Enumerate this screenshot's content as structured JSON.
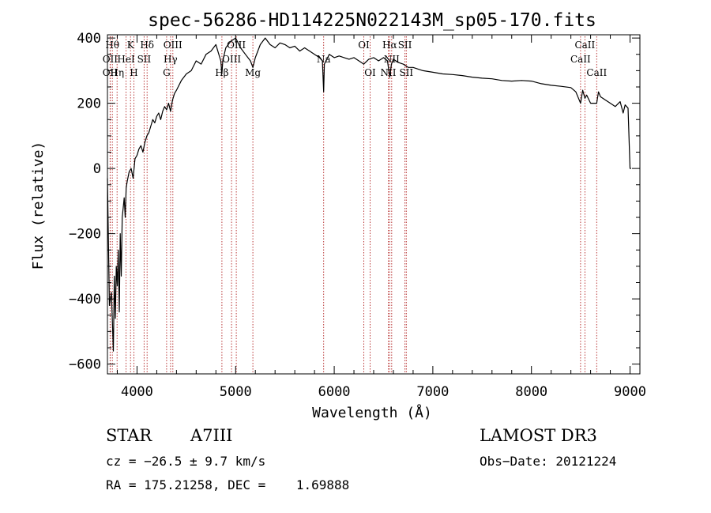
{
  "chart_data": {
    "type": "line",
    "title": "spec-56286-HD114225N022143M_sp05-170.fits",
    "xlabel": "Wavelength (Å)",
    "ylabel": "Flux (relative)",
    "xlim": [
      3700,
      9100
    ],
    "ylim": [
      -630,
      410
    ],
    "x_ticks": [
      {
        "value": 4000,
        "label": "4000"
      },
      {
        "value": 5000,
        "label": "5000"
      },
      {
        "value": 6000,
        "label": "6000"
      },
      {
        "value": 7000,
        "label": "7000"
      },
      {
        "value": 8000,
        "label": "8000"
      },
      {
        "value": 9000,
        "label": "9000"
      }
    ],
    "y_ticks": [
      {
        "value": -600,
        "label": "−600"
      },
      {
        "value": -400,
        "label": "−400"
      },
      {
        "value": -200,
        "label": "−200"
      },
      {
        "value": 0,
        "label": "0"
      },
      {
        "value": 200,
        "label": "200"
      },
      {
        "value": 400,
        "label": "400"
      }
    ],
    "series": [
      {
        "name": "spectrum",
        "x": [
          3700,
          3720,
          3740,
          3760,
          3770,
          3780,
          3790,
          3800,
          3810,
          3820,
          3830,
          3840,
          3850,
          3860,
          3870,
          3880,
          3890,
          3900,
          3920,
          3940,
          3960,
          3980,
          4000,
          4020,
          4040,
          4060,
          4080,
          4100,
          4120,
          4140,
          4160,
          4180,
          4200,
          4220,
          4240,
          4260,
          4280,
          4300,
          4320,
          4340,
          4360,
          4380,
          4400,
          4450,
          4500,
          4550,
          4600,
          4650,
          4700,
          4750,
          4800,
          4830,
          4850,
          4861,
          4870,
          4900,
          4950,
          5000,
          5050,
          5100,
          5150,
          5175,
          5200,
          5250,
          5300,
          5350,
          5400,
          5450,
          5500,
          5550,
          5600,
          5650,
          5700,
          5750,
          5800,
          5850,
          5880,
          5893,
          5900,
          5950,
          6000,
          6050,
          6100,
          6150,
          6200,
          6250,
          6300,
          6350,
          6400,
          6450,
          6500,
          6540,
          6563,
          6580,
          6600,
          6650,
          6700,
          6750,
          6800,
          6900,
          7000,
          7100,
          7200,
          7300,
          7400,
          7500,
          7600,
          7700,
          7800,
          7900,
          8000,
          8100,
          8200,
          8300,
          8400,
          8450,
          8498,
          8520,
          8542,
          8560,
          8600,
          8662,
          8680,
          8700,
          8750,
          8800,
          8850,
          8900,
          8930,
          8950,
          8980,
          9000,
          9010
        ],
        "y": [
          -30,
          -420,
          -380,
          -560,
          -330,
          -460,
          -300,
          -360,
          -250,
          -440,
          -200,
          -330,
          -150,
          -120,
          -90,
          -150,
          -60,
          -40,
          -10,
          0,
          -30,
          30,
          40,
          60,
          70,
          50,
          80,
          100,
          110,
          130,
          150,
          140,
          160,
          170,
          150,
          175,
          190,
          180,
          200,
          175,
          210,
          230,
          240,
          270,
          290,
          300,
          330,
          320,
          350,
          360,
          380,
          350,
          330,
          290,
          330,
          370,
          390,
          400,
          370,
          350,
          330,
          310,
          340,
          380,
          400,
          380,
          370,
          385,
          380,
          370,
          375,
          360,
          370,
          360,
          350,
          340,
          330,
          235,
          320,
          350,
          340,
          345,
          340,
          335,
          340,
          330,
          320,
          335,
          340,
          330,
          340,
          330,
          280,
          320,
          335,
          325,
          320,
          310,
          310,
          300,
          295,
          290,
          288,
          285,
          280,
          277,
          275,
          270,
          268,
          270,
          268,
          260,
          255,
          252,
          248,
          235,
          200,
          240,
          215,
          225,
          200,
          200,
          235,
          220,
          210,
          200,
          190,
          205,
          170,
          195,
          185,
          0,
          0
        ]
      }
    ],
    "lines": [
      {
        "x": 3750,
        "label": "Hθ",
        "row": 0
      },
      {
        "x": 3727,
        "label": "OII",
        "row": 1
      },
      {
        "x": 3727,
        "label": "OII",
        "row": 2
      },
      {
        "x": 3798,
        "label": "Hη",
        "row": 2
      },
      {
        "x": 3889,
        "label": "HeI",
        "row": 1
      },
      {
        "x": 3934,
        "label": "K",
        "row": 0
      },
      {
        "x": 3968,
        "label": "H",
        "row": 2
      },
      {
        "x": 4072,
        "label": "SII",
        "row": 1
      },
      {
        "x": 4102,
        "label": "Hδ",
        "row": 0
      },
      {
        "x": 4300,
        "label": "G",
        "row": 2
      },
      {
        "x": 4340,
        "label": "Hγ",
        "row": 1
      },
      {
        "x": 4363,
        "label": "OIII",
        "row": 0
      },
      {
        "x": 4861,
        "label": "Hβ",
        "row": 2
      },
      {
        "x": 4959,
        "label": "OIII",
        "row": 1
      },
      {
        "x": 5007,
        "label": "OIII",
        "row": 0
      },
      {
        "x": 5175,
        "label": "Mg",
        "row": 2
      },
      {
        "x": 5893,
        "label": "Na",
        "row": 1
      },
      {
        "x": 6300,
        "label": "OI",
        "row": 0
      },
      {
        "x": 6364,
        "label": "OI",
        "row": 2
      },
      {
        "x": 6548,
        "label": "NII",
        "row": 2
      },
      {
        "x": 6563,
        "label": "Hα",
        "row": 0
      },
      {
        "x": 6583,
        "label": "NII",
        "row": 1
      },
      {
        "x": 6717,
        "label": "SII",
        "row": 0
      },
      {
        "x": 6731,
        "label": "SII",
        "row": 2
      },
      {
        "x": 8498,
        "label": "CaII",
        "row": 1
      },
      {
        "x": 8542,
        "label": "CaII",
        "row": 0
      },
      {
        "x": 8662,
        "label": "CaII",
        "row": 2
      }
    ]
  },
  "info": {
    "object_type": "STAR",
    "spectral_class": "A7III",
    "survey": "LAMOST DR3",
    "cz": "cz = −26.5 ± 9.7 km/s",
    "obs_date": "Obs−Date: 20121224",
    "coords": "RA = 175.21258, DEC =    1.69888"
  },
  "colors": {
    "spectrum": "#000000",
    "line_marker": "#b22222",
    "axes": "#000000",
    "background": "#ffffff"
  }
}
